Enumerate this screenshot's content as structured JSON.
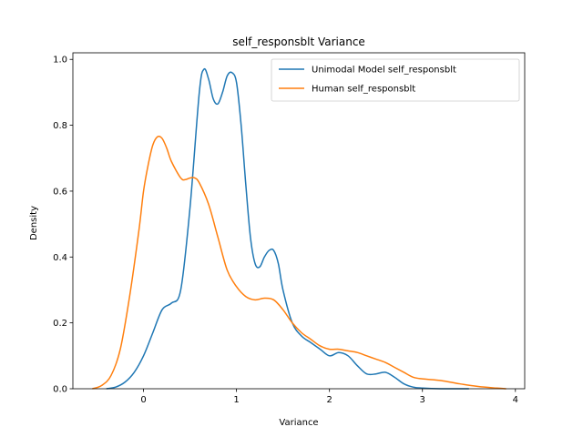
{
  "chart_data": {
    "type": "line",
    "title": "self_responsblt Variance",
    "xlabel": "Variance",
    "ylabel": "Density",
    "xlim": [
      -0.76,
      4.1
    ],
    "ylim": [
      0,
      1.02
    ],
    "xticks": [
      0,
      1,
      2,
      3,
      4
    ],
    "yticks": [
      0.0,
      0.2,
      0.4,
      0.6,
      0.8,
      1.0
    ],
    "xtick_labels": [
      "0",
      "1",
      "2",
      "3",
      "4"
    ],
    "ytick_labels": [
      "0.0",
      "0.2",
      "0.4",
      "0.6",
      "0.8",
      "1.0"
    ],
    "grid": false,
    "legend_position": "top-right",
    "series": [
      {
        "name": "Unimodal Model self_responsblt",
        "color": "#1f77b4",
        "x": [
          -0.4,
          -0.3,
          -0.2,
          -0.1,
          0.0,
          0.1,
          0.2,
          0.3,
          0.4,
          0.5,
          0.6,
          0.65,
          0.7,
          0.75,
          0.8,
          0.85,
          0.9,
          0.95,
          1.0,
          1.05,
          1.1,
          1.15,
          1.2,
          1.25,
          1.3,
          1.35,
          1.4,
          1.45,
          1.5,
          1.6,
          1.7,
          1.8,
          1.9,
          2.0,
          2.1,
          2.2,
          2.3,
          2.4,
          2.5,
          2.6,
          2.7,
          2.8,
          2.9,
          3.0,
          3.2,
          3.5
        ],
        "y": [
          0.0,
          0.005,
          0.02,
          0.05,
          0.1,
          0.17,
          0.24,
          0.26,
          0.3,
          0.55,
          0.9,
          0.97,
          0.94,
          0.88,
          0.865,
          0.9,
          0.95,
          0.96,
          0.93,
          0.8,
          0.62,
          0.46,
          0.38,
          0.37,
          0.4,
          0.42,
          0.42,
          0.38,
          0.3,
          0.2,
          0.16,
          0.14,
          0.12,
          0.1,
          0.11,
          0.1,
          0.07,
          0.045,
          0.045,
          0.05,
          0.035,
          0.015,
          0.005,
          0.002,
          0.0,
          0.0
        ]
      },
      {
        "name": "Human self_responsblt",
        "color": "#ff7f0e",
        "x": [
          -0.55,
          -0.45,
          -0.35,
          -0.25,
          -0.15,
          -0.05,
          0.0,
          0.05,
          0.1,
          0.15,
          0.2,
          0.25,
          0.3,
          0.4,
          0.45,
          0.5,
          0.55,
          0.6,
          0.7,
          0.8,
          0.9,
          1.0,
          1.1,
          1.2,
          1.3,
          1.4,
          1.5,
          1.6,
          1.7,
          1.8,
          1.9,
          2.0,
          2.1,
          2.2,
          2.3,
          2.4,
          2.5,
          2.6,
          2.7,
          2.8,
          2.9,
          3.0,
          3.2,
          3.4,
          3.6,
          3.8,
          3.9
        ],
        "y": [
          0.0,
          0.01,
          0.04,
          0.12,
          0.28,
          0.48,
          0.6,
          0.68,
          0.74,
          0.765,
          0.76,
          0.73,
          0.69,
          0.64,
          0.635,
          0.64,
          0.64,
          0.625,
          0.56,
          0.46,
          0.36,
          0.31,
          0.28,
          0.27,
          0.275,
          0.27,
          0.24,
          0.2,
          0.17,
          0.15,
          0.13,
          0.12,
          0.12,
          0.115,
          0.11,
          0.1,
          0.09,
          0.08,
          0.065,
          0.05,
          0.035,
          0.03,
          0.025,
          0.015,
          0.007,
          0.002,
          0.0
        ]
      }
    ]
  }
}
